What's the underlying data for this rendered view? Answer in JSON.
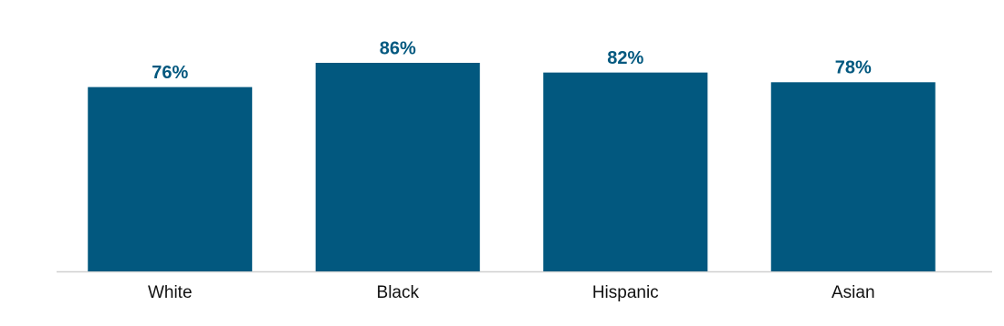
{
  "chart_data": {
    "type": "bar",
    "categories": [
      "White",
      "Black",
      "Hispanic",
      "Asian"
    ],
    "values": [
      76,
      86,
      82,
      78
    ],
    "value_labels": [
      "76%",
      "86%",
      "82%",
      "78%"
    ],
    "color": "#02587f"
  }
}
